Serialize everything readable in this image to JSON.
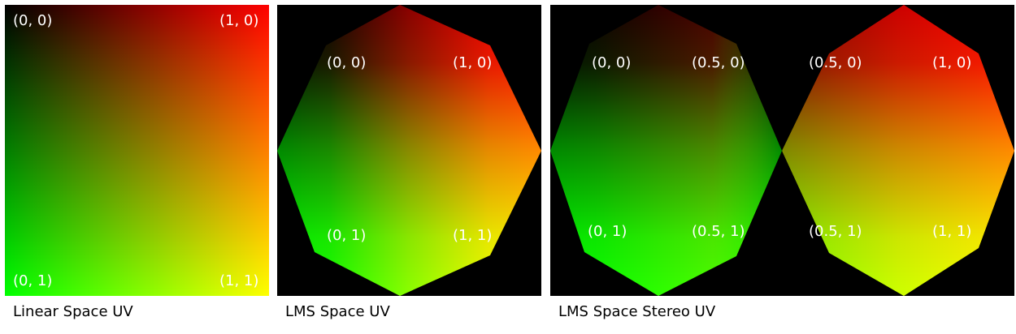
{
  "panels": {
    "linear": {
      "caption": "Linear Space UV",
      "labels": {
        "top_left": "(0, 0)",
        "top_right": "(1, 0)",
        "bottom_left": "(0, 1)",
        "bottom_right": "(1, 1)"
      }
    },
    "lms": {
      "caption": "LMS Space UV",
      "labels": {
        "top_left": "(0, 0)",
        "top_right": "(1, 0)",
        "bottom_left": "(0, 1)",
        "bottom_right": "(1, 1)"
      }
    },
    "stereo": {
      "caption": "LMS Space Stereo UV",
      "labels": {
        "left_top_left": "(0, 0)",
        "left_top_right": "(0.5, 0)",
        "left_bottom_left": "(0, 1)",
        "left_bottom_right": "(0.5, 1)",
        "right_top_left": "(0.5, 0)",
        "right_top_right": "(1, 0)",
        "right_bottom_left": "(0.5, 1)",
        "right_bottom_right": "(1, 1)"
      }
    }
  },
  "colors": {
    "corner_00": "#000000",
    "corner_10": "#ff2000",
    "corner_01": "#00e000",
    "corner_11": "#ffff00",
    "background": "#000000",
    "label": "#ffffff",
    "caption": "#000000"
  }
}
